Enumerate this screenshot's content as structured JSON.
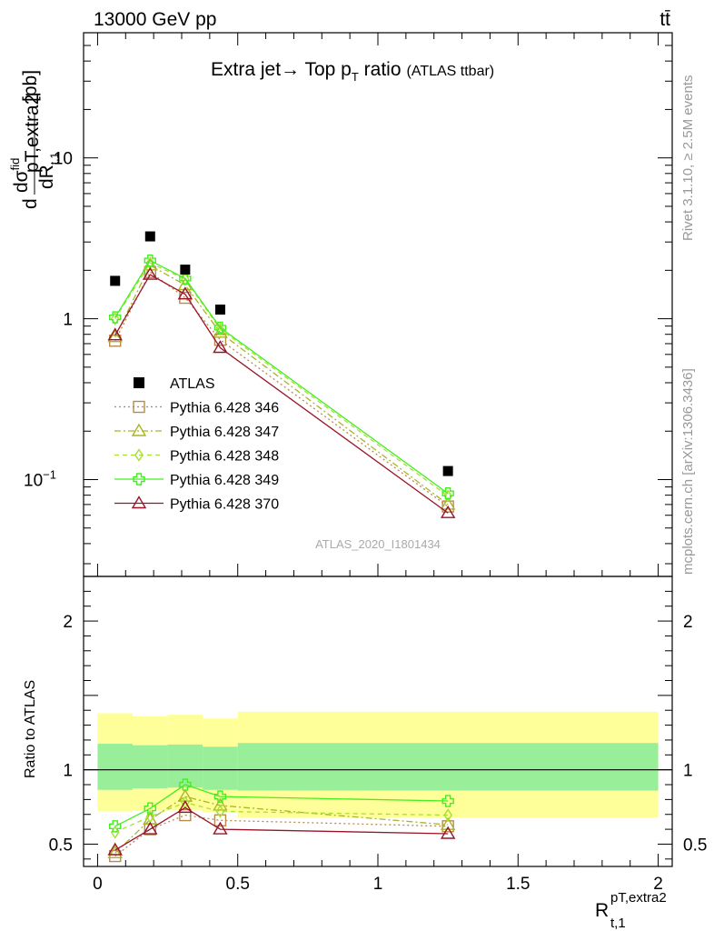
{
  "header": {
    "energy_label": "13000 GeV pp",
    "process_label": "tt̄"
  },
  "side_labels": {
    "rivet": "Rivet 3.1.10, ≥ 2.5M events",
    "mcplots": "mcplots.cern.ch [arXiv:1306.3436]"
  },
  "watermark": "ATLAS_2020_I1801434",
  "chart_data": {
    "type": "scatter",
    "title": "Extra jet→ Top p",
    "title_sub": "T",
    "title_tail": " ratio",
    "title_note": "(ATLAS ttbar)",
    "ylabel_main": "dσ^fid_pT,extra2 / dR_t,1 [pb]",
    "ylabel_main_parts": {
      "d": "d",
      "sigma": "dσ",
      "sup": "fid",
      "sub": "pT,extra2",
      "den": "dR",
      "den_sub": "t,1",
      "unit": "[pb]"
    },
    "ylabel_ratio": "Ratio to ATLAS",
    "xlabel_main": "R",
    "xlabel_sup": "pT,extra2",
    "xlabel_sub": "t,1",
    "xlim": [
      -0.05,
      2.05
    ],
    "ylim_main": [
      0.025,
      60
    ],
    "yscale_main": "log",
    "ylim_ratio": [
      0.35,
      2.3
    ],
    "xticks": [
      0,
      0.5,
      1,
      1.5,
      2
    ],
    "xtick_labels": [
      "0",
      "0.5",
      "1",
      "1.5",
      "2"
    ],
    "main_yticks": [
      0.1,
      1,
      10
    ],
    "main_ytick_labels": [
      "10",
      "1",
      "10"
    ],
    "main_ytick_exp": [
      "−1",
      "",
      ""
    ],
    "ratio_yticks": [
      0.5,
      1,
      2
    ],
    "ratio_ytick_labels": [
      "0.5",
      "1",
      "2"
    ],
    "x": [
      0.0625,
      0.1875,
      0.3125,
      0.4375,
      1.25
    ],
    "bands": [
      {
        "x0": 0.0,
        "x1": 0.125,
        "inner": [
          0.865,
          1.175
        ],
        "outer": [
          0.72,
          1.38
        ]
      },
      {
        "x0": 0.125,
        "x1": 0.25,
        "inner": [
          0.875,
          1.165
        ],
        "outer": [
          0.725,
          1.36
        ]
      },
      {
        "x0": 0.25,
        "x1": 0.375,
        "inner": [
          0.88,
          1.17
        ],
        "outer": [
          0.73,
          1.37
        ]
      },
      {
        "x0": 0.375,
        "x1": 0.5,
        "inner": [
          0.865,
          1.155
        ],
        "outer": [
          0.715,
          1.345
        ]
      },
      {
        "x0": 0.5,
        "x1": 2.0,
        "inner": [
          0.86,
          1.18
        ],
        "outer": [
          0.68,
          1.39
        ]
      }
    ],
    "data_series": {
      "name": "ATLAS",
      "values": [
        1.72,
        3.25,
        2.02,
        1.14,
        0.113
      ],
      "color": "#000000"
    },
    "series": [
      {
        "name": "Pythia 6.428 346",
        "color": "#b88a4e",
        "marker": "square",
        "dash": "2,3",
        "values": [
          0.73,
          1.95,
          1.35,
          0.74,
          0.068
        ],
        "ratio": [
          0.42,
          0.6,
          0.695,
          0.66,
          0.62
        ]
      },
      {
        "name": "Pythia 6.428 347",
        "color": "#aab428",
        "marker": "triangle",
        "dash": "7,3,2,3",
        "values": [
          0.77,
          2.15,
          1.62,
          0.82,
          0.07
        ],
        "ratio": [
          0.44,
          0.665,
          0.82,
          0.76,
          0.63
        ]
      },
      {
        "name": "Pythia 6.428 348",
        "color": "#a8e030",
        "marker": "diamond",
        "dash": "5,4",
        "values": [
          1.0,
          2.22,
          1.76,
          0.86,
          0.079
        ],
        "ratio": [
          0.58,
          0.685,
          0.78,
          0.72,
          0.695
        ]
      },
      {
        "name": "Pythia 6.428 349",
        "color": "#44ee22",
        "marker": "cross",
        "dash": "",
        "values": [
          1.02,
          2.3,
          1.78,
          0.88,
          0.082
        ],
        "ratio": [
          0.62,
          0.74,
          0.9,
          0.82,
          0.79
        ]
      },
      {
        "name": "Pythia 6.428 370",
        "color": "#9a1428",
        "marker": "triangle",
        "dash": "",
        "values": [
          0.79,
          1.88,
          1.42,
          0.66,
          0.062
        ],
        "ratio": [
          0.46,
          0.6,
          0.745,
          0.6,
          0.57
        ]
      }
    ]
  }
}
